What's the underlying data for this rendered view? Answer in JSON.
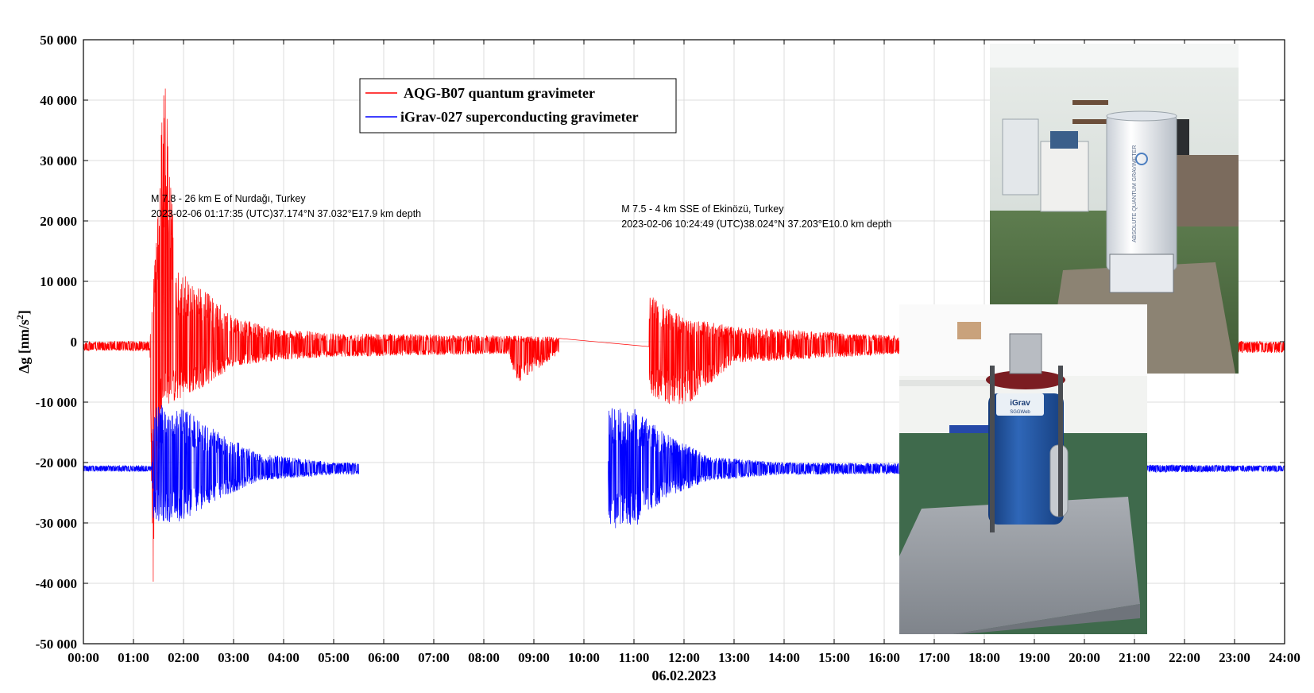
{
  "chart_data": {
    "type": "line",
    "xlabel": "06.02.2023",
    "ylabel": "Δg [nm/s²]",
    "ylabel_base": "Δg [nm/s",
    "ylabel_sup": "2",
    "ylabel_close": "]",
    "xlim": [
      0,
      24
    ],
    "ylim": [
      -50000,
      50000
    ],
    "grid": true,
    "legend_position": "top-center",
    "x_ticks": [
      "00:00",
      "01:00",
      "02:00",
      "03:00",
      "04:00",
      "05:00",
      "06:00",
      "07:00",
      "08:00",
      "09:00",
      "10:00",
      "11:00",
      "12:00",
      "13:00",
      "14:00",
      "15:00",
      "16:00",
      "17:00",
      "18:00",
      "19:00",
      "20:00",
      "21:00",
      "22:00",
      "23:00",
      "24:00"
    ],
    "y_ticks": [
      50000,
      40000,
      30000,
      20000,
      10000,
      0,
      -10000,
      -20000,
      -30000,
      -40000,
      -50000
    ],
    "y_tick_labels": [
      "50 000",
      "40 000",
      "30 000",
      "20 000",
      "10 000",
      "0",
      "-10 000",
      "-20 000",
      "-30 000",
      "-40 000",
      "-50 000"
    ],
    "series": [
      {
        "name": "AQG-B07 quantum gravimeter",
        "color": "#ff0000",
        "baseline": -800,
        "noise": 500,
        "envelope_points": [
          {
            "x": 0.0,
            "upper": 0,
            "lower": -1500
          },
          {
            "x": 1.33,
            "upper": 200,
            "lower": -1500
          },
          {
            "x": 1.38,
            "upper": 6500,
            "lower": -43000
          },
          {
            "x": 1.55,
            "upper": 36000,
            "lower": -11000
          },
          {
            "x": 1.63,
            "upper": 44000,
            "lower": -10500
          },
          {
            "x": 1.85,
            "upper": 12000,
            "lower": -10000
          },
          {
            "x": 2.5,
            "upper": 8000,
            "lower": -7000
          },
          {
            "x": 3.0,
            "upper": 4000,
            "lower": -4000
          },
          {
            "x": 4.0,
            "upper": 2000,
            "lower": -3000
          },
          {
            "x": 5.0,
            "upper": 1500,
            "lower": -2500
          },
          {
            "x": 8.5,
            "upper": 1000,
            "lower": -2000
          },
          {
            "x": 8.65,
            "upper": 1000,
            "lower": -7000
          },
          {
            "x": 9.5,
            "upper": 800,
            "lower": -2000
          },
          {
            "x": 11.35,
            "upper": 7500,
            "lower": -9500
          },
          {
            "x": 12.0,
            "upper": 4000,
            "lower": -11000
          },
          {
            "x": 13.0,
            "upper": 2500,
            "lower": -3500
          },
          {
            "x": 16.3,
            "upper": 1000,
            "lower": -2000
          },
          {
            "x": 24.0,
            "upper": 0,
            "lower": -1800
          }
        ],
        "data_gaps": [
          [
            9.5,
            11.3
          ]
        ]
      },
      {
        "name": "iGrav-027 superconducting gravimeter",
        "color": "#0000ff",
        "baseline": -21000,
        "noise": 400,
        "envelope_points": [
          {
            "x": 0.0,
            "upper": -20500,
            "lower": -21500
          },
          {
            "x": 1.37,
            "upper": -20500,
            "lower": -21500
          },
          {
            "x": 1.4,
            "upper": -10500,
            "lower": -30000
          },
          {
            "x": 1.9,
            "upper": -10500,
            "lower": -30000
          },
          {
            "x": 2.5,
            "upper": -14000,
            "lower": -27000
          },
          {
            "x": 3.5,
            "upper": -18500,
            "lower": -23000
          },
          {
            "x": 5.0,
            "upper": -20000,
            "lower": -22000
          },
          {
            "x": 10.48,
            "upper": -20500,
            "lower": -21500
          },
          {
            "x": 10.5,
            "upper": -11000,
            "lower": -31000
          },
          {
            "x": 11.0,
            "upper": -11000,
            "lower": -31000
          },
          {
            "x": 11.6,
            "upper": -15000,
            "lower": -26000
          },
          {
            "x": 12.5,
            "upper": -19000,
            "lower": -23000
          },
          {
            "x": 14.0,
            "upper": -20000,
            "lower": -22000
          },
          {
            "x": 24.0,
            "upper": -20500,
            "lower": -21500
          }
        ],
        "data_gaps": [
          [
            5.5,
            10.48
          ]
        ]
      }
    ],
    "annotations": [
      {
        "line1": "M 7.8 - 26 km E of Nurdağı, Turkey",
        "line2": "2023-02-06 01:17:35 (UTC)37.174°N 37.032°E17.9 km depth",
        "x": 1.35,
        "y": 22500
      },
      {
        "line1": "M 7.5 - 4 km SSE of Ekinözü, Turkey",
        "line2": "2023-02-06 10:24:49 (UTC)38.024°N 37.203°E10.0 km depth",
        "x": 10.75,
        "y": 20800
      }
    ]
  },
  "photos": [
    {
      "label": "ABSOLUTE QUANTUM GRAVIMETER",
      "kind": "aqg-photo"
    },
    {
      "label": "iGrav",
      "sublabel": "SGGWeb",
      "kind": "igrav-photo"
    }
  ]
}
